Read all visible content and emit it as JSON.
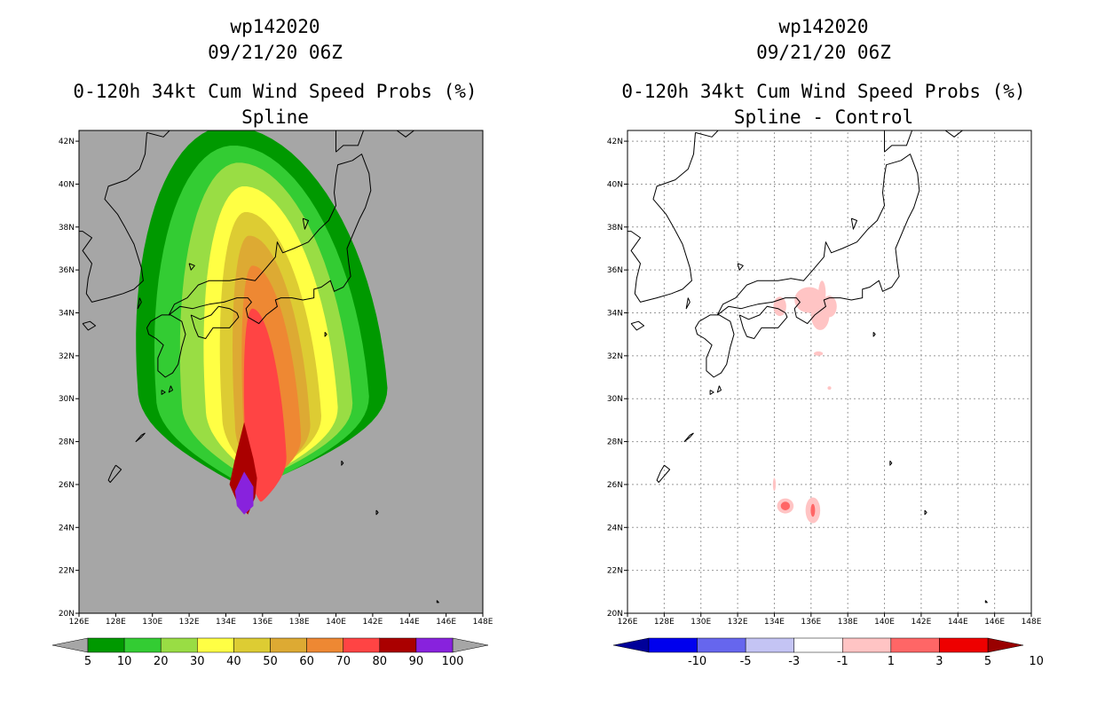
{
  "chart_data": [
    {
      "type": "heatmap",
      "storm_id": "wp142020",
      "datetime": "09/21/20 06Z",
      "title": "0-120h 34kt Cum Wind Speed Probs (%)",
      "subtitle": "Spline",
      "lon_ticks": [
        "126E",
        "128E",
        "130E",
        "132E",
        "134E",
        "136E",
        "138E",
        "140E",
        "142E",
        "144E",
        "146E",
        "148E"
      ],
      "lat_ticks": [
        "20N",
        "22N",
        "24N",
        "26N",
        "28N",
        "30N",
        "32N",
        "34N",
        "36N",
        "38N",
        "40N",
        "42N"
      ],
      "xlim": [
        126,
        148
      ],
      "ylim": [
        20,
        42.5
      ],
      "background": "#a6a6a6",
      "colorbar": {
        "labels": [
          "5",
          "10",
          "20",
          "30",
          "40",
          "50",
          "60",
          "70",
          "80",
          "90",
          "100"
        ],
        "colors": [
          "#009900",
          "#33cc33",
          "#99dd44",
          "#ffff44",
          "#ddcc33",
          "#ddaa33",
          "#ee8833",
          "#ff4444",
          "#aa0000",
          "#8822dd"
        ]
      },
      "contour_levels": [
        {
          "level": 5,
          "color": "#009900",
          "center": [
            135.2,
            30.5
          ],
          "a": [
            6.0,
            7.6
          ],
          "b": [
            4.6,
            12.2
          ],
          "skew": 1.2
        },
        {
          "level": 10,
          "color": "#33cc33",
          "center": [
            135.4,
            30.1
          ],
          "a": [
            5.2,
            6.4
          ],
          "b": [
            4.2,
            11.7
          ],
          "skew": 1.1
        },
        {
          "level": 20,
          "color": "#99dd44",
          "center": [
            135.6,
            29.8
          ],
          "a": [
            4.0,
            5.3
          ],
          "b": [
            3.6,
            11.2
          ],
          "skew": 1.0
        },
        {
          "level": 30,
          "color": "#ffff44",
          "center": [
            135.8,
            29.6
          ],
          "a": [
            2.9,
            4.3
          ],
          "b": [
            3.3,
            10.3
          ],
          "skew": 0.9
        },
        {
          "level": 40,
          "color": "#ddcc33",
          "center": [
            135.8,
            29.2
          ],
          "a": [
            2.0,
            3.4
          ],
          "b": [
            2.9,
            9.5
          ],
          "skew": 0.8
        },
        {
          "level": 50,
          "color": "#ddaa33",
          "center": [
            135.9,
            28.8
          ],
          "a": [
            1.4,
            2.7
          ],
          "b": [
            2.6,
            8.8
          ],
          "skew": 0.7
        },
        {
          "level": 60,
          "color": "#ee8833",
          "center": [
            136.0,
            28.2
          ],
          "a": [
            1.0,
            2.1
          ],
          "b": [
            2.2,
            8.0
          ],
          "skew": 0.6
        },
        {
          "level": 70,
          "color": "#ff4444",
          "center": [
            135.9,
            27.3
          ],
          "a": [
            0.8,
            1.4
          ],
          "b": [
            2.1,
            6.9
          ],
          "skew": 0.5
        }
      ],
      "core_levels": [
        {
          "level": 80,
          "color": "#aa0000",
          "polygon": [
            [
              135.0,
              28.9
            ],
            [
              135.5,
              27.2
            ],
            [
              135.7,
              26.3
            ],
            [
              135.6,
              25.4
            ],
            [
              135.2,
              24.6
            ],
            [
              134.6,
              25.2
            ],
            [
              134.2,
              26.0
            ],
            [
              134.5,
              27.2
            ]
          ]
        },
        {
          "level": 90,
          "color": "#8822dd",
          "polygon": [
            [
              135.0,
              26.6
            ],
            [
              135.5,
              25.9
            ],
            [
              135.5,
              25.0
            ],
            [
              135.0,
              24.6
            ],
            [
              134.6,
              25.0
            ],
            [
              134.5,
              25.7
            ]
          ]
        }
      ]
    },
    {
      "type": "heatmap",
      "storm_id": "wp142020",
      "datetime": "09/21/20 06Z",
      "title": "0-120h 34kt Cum Wind Speed Probs (%)",
      "subtitle": "Spline - Control",
      "lon_ticks": [
        "126E",
        "128E",
        "130E",
        "132E",
        "134E",
        "136E",
        "138E",
        "140E",
        "142E",
        "144E",
        "146E",
        "148E"
      ],
      "lat_ticks": [
        "20N",
        "22N",
        "24N",
        "26N",
        "28N",
        "30N",
        "32N",
        "34N",
        "36N",
        "38N",
        "40N",
        "42N"
      ],
      "xlim": [
        126,
        148
      ],
      "ylim": [
        20,
        42.5
      ],
      "background": "#ffffff",
      "gridlines": true,
      "colorbar": {
        "labels": [
          "-10",
          "-5",
          "-3",
          "-1",
          "1",
          "3",
          "5",
          "10"
        ],
        "colors": [
          "#000099",
          "#0000ee",
          "#6666ee",
          "#c4c4f4",
          "#ffffff",
          "#ffc4c4",
          "#ff6666",
          "#ee0000",
          "#990000"
        ]
      },
      "difference_patches": [
        {
          "level": "1-3",
          "color": "#ffc4c4",
          "center": [
            134.3,
            34.3
          ],
          "r": [
            0.35,
            0.45
          ]
        },
        {
          "level": "1-3",
          "color": "#ffc4c4",
          "center": [
            135.9,
            34.6
          ],
          "r": [
            0.8,
            0.6
          ]
        },
        {
          "level": "1-3",
          "color": "#ffc4c4",
          "center": [
            136.6,
            34.9
          ],
          "r": [
            0.2,
            0.6
          ]
        },
        {
          "level": "1-3",
          "color": "#ffc4c4",
          "center": [
            136.5,
            33.9
          ],
          "r": [
            0.5,
            0.7
          ]
        },
        {
          "level": "1-3",
          "color": "#ffc4c4",
          "center": [
            137.0,
            34.3
          ],
          "r": [
            0.4,
            0.5
          ]
        },
        {
          "level": "1-3",
          "color": "#ffc4c4",
          "center": [
            136.4,
            32.1
          ],
          "r": [
            0.25,
            0.1
          ]
        },
        {
          "level": "1-3",
          "color": "#ffc4c4",
          "center": [
            137.0,
            30.5
          ],
          "r": [
            0.1,
            0.08
          ]
        },
        {
          "level": "1-3",
          "color": "#ffc4c4",
          "center": [
            134.0,
            26.0
          ],
          "r": [
            0.08,
            0.3
          ]
        },
        {
          "level": "1-3",
          "color": "#ffc4c4",
          "center": [
            134.6,
            25.0
          ],
          "r": [
            0.45,
            0.35
          ]
        },
        {
          "level": "3-5",
          "color": "#ff6666",
          "center": [
            134.6,
            25.0
          ],
          "r": [
            0.25,
            0.2
          ]
        },
        {
          "level": "1-3",
          "color": "#ffc4c4",
          "center": [
            136.1,
            24.8
          ],
          "r": [
            0.4,
            0.6
          ]
        },
        {
          "level": "3-5",
          "color": "#ff6666",
          "center": [
            136.1,
            24.8
          ],
          "r": [
            0.12,
            0.3
          ]
        }
      ]
    }
  ]
}
